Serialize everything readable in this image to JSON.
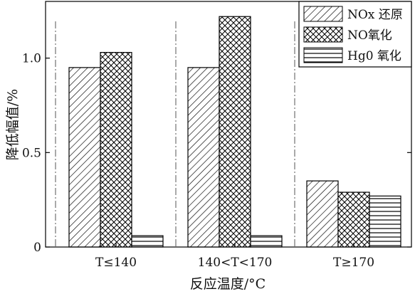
{
  "chart_data": {
    "type": "bar",
    "ylabel": "降低幅值/%",
    "xlabel": "反应温度/°C",
    "categories": [
      "T≤140",
      "140<T<170",
      "T≥170"
    ],
    "ylim": [
      0,
      1.3
    ],
    "yticks": [
      0,
      0.5,
      1.0
    ],
    "ytick_labels": [
      "0",
      "0.5",
      "1.0"
    ],
    "series": [
      {
        "name": "NOx 还原",
        "values": [
          0.95,
          0.95,
          0.35
        ],
        "pattern": "diagonal-hatch"
      },
      {
        "name": "NO氧化",
        "values": [
          1.03,
          1.22,
          0.29
        ],
        "pattern": "cross-hatch"
      },
      {
        "name": "Hg0 氧化",
        "values": [
          0.06,
          0.06,
          0.27
        ],
        "pattern": "horizontal-lines"
      }
    ],
    "legend_position": "top-right",
    "group_separators": "dash-dot vertical lines",
    "colors": {
      "frame": "#000000",
      "hatch": "#000000",
      "background": "#ffffff"
    }
  }
}
